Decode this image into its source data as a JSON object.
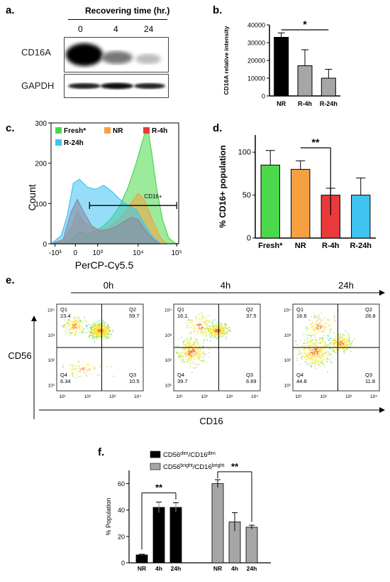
{
  "panel_labels": {
    "a": "a.",
    "b": "b.",
    "c": "c.",
    "d": "d.",
    "e": "e.",
    "f": "f."
  },
  "western_blot": {
    "header": "Recovering time (hr.)",
    "lanes": [
      "0",
      "4",
      "24"
    ],
    "rows": [
      "CD16A",
      "GAPDH"
    ],
    "band_intensity": {
      "CD16A": [
        1.0,
        0.5,
        0.3
      ],
      "GAPDH": [
        1.0,
        1.0,
        1.0
      ]
    }
  },
  "chart_data": [
    {
      "id": "b",
      "type": "bar",
      "categories": [
        "NR",
        "R-4h",
        "R-24h"
      ],
      "values": [
        33000,
        17000,
        10000
      ],
      "errors": [
        2500,
        9000,
        5000
      ],
      "colors": [
        "#000000",
        "#a6a6a6",
        "#a6a6a6"
      ],
      "ylabel": "CD16A relative intensity",
      "ylim": [
        0,
        40000
      ],
      "yticks": [
        "0",
        "10000",
        "20000",
        "30000",
        "40000"
      ],
      "significance": [
        {
          "from": 0,
          "to": 2,
          "label": "*"
        }
      ]
    },
    {
      "id": "c",
      "type": "area",
      "xlabel": "PerCP-Cy5.5",
      "ylabel": "Count",
      "ylim": [
        0,
        300
      ],
      "yticks": [
        "0",
        "100",
        "200",
        "300"
      ],
      "xticks": [
        "-10³",
        "0",
        "10³",
        "10⁴",
        "10⁵"
      ],
      "gate_label": "CD16+",
      "series": [
        {
          "name": "Fresh*",
          "color": "#4bd94b",
          "curve": [
            [
              0,
              0
            ],
            [
              0.6,
              2
            ],
            [
              1,
              10
            ],
            [
              1.4,
              30
            ],
            [
              1.8,
              22
            ],
            [
              2.2,
              32
            ],
            [
              2.6,
              45
            ],
            [
              3,
              65
            ],
            [
              3.4,
              95
            ],
            [
              3.8,
              140
            ],
            [
              4.2,
              200
            ],
            [
              4.6,
              270
            ],
            [
              4.8,
              280
            ],
            [
              5,
              215
            ],
            [
              5.2,
              140
            ],
            [
              5.5,
              60
            ],
            [
              5.8,
              15
            ],
            [
              6.1,
              2
            ],
            [
              6.3,
              0
            ]
          ]
        },
        {
          "name": "NR",
          "color": "#f5a142",
          "curve": [
            [
              0,
              0
            ],
            [
              0.6,
              5
            ],
            [
              1,
              40
            ],
            [
              1.3,
              80
            ],
            [
              1.6,
              55
            ],
            [
              2,
              40
            ],
            [
              2.4,
              35
            ],
            [
              2.8,
              40
            ],
            [
              3.2,
              55
            ],
            [
              3.6,
              75
            ],
            [
              4,
              105
            ],
            [
              4.3,
              125
            ],
            [
              4.6,
              110
            ],
            [
              5,
              60
            ],
            [
              5.4,
              15
            ],
            [
              5.7,
              0
            ]
          ]
        },
        {
          "name": "R-4h",
          "color": "#e83a3a",
          "curve": [
            [
              0,
              0
            ],
            [
              0.6,
              10
            ],
            [
              1,
              80
            ],
            [
              1.3,
              110
            ],
            [
              1.6,
              80
            ],
            [
              2,
              45
            ],
            [
              2.4,
              32
            ],
            [
              2.8,
              35
            ],
            [
              3.2,
              42
            ],
            [
              3.6,
              55
            ],
            [
              4,
              65
            ],
            [
              4.3,
              60
            ],
            [
              4.7,
              30
            ],
            [
              5.1,
              8
            ],
            [
              5.4,
              0
            ]
          ]
        },
        {
          "name": "R-24h",
          "color": "#3fc3f0",
          "curve": [
            [
              0,
              0
            ],
            [
              0.5,
              20
            ],
            [
              0.8,
              70
            ],
            [
              1.1,
              150
            ],
            [
              1.4,
              160
            ],
            [
              1.8,
              140
            ],
            [
              2.2,
              135
            ],
            [
              2.6,
              145
            ],
            [
              3,
              130
            ],
            [
              3.4,
              110
            ],
            [
              3.8,
              95
            ],
            [
              4.2,
              85
            ],
            [
              4.6,
              50
            ],
            [
              5,
              18
            ],
            [
              5.4,
              0
            ]
          ]
        }
      ]
    },
    {
      "id": "d",
      "type": "bar",
      "categories": [
        "Fresh*",
        "NR",
        "R-4h",
        "R-24h"
      ],
      "values": [
        85,
        80,
        50,
        50
      ],
      "errors": [
        17,
        10,
        8,
        20
      ],
      "colors": [
        "#4bd94b",
        "#f5a142",
        "#e83a3a",
        "#3fc3f0"
      ],
      "ylabel": "% CD16+ population",
      "ylim": [
        0,
        120
      ],
      "yticks": [
        "0",
        "50",
        "100"
      ],
      "significance": [
        {
          "from": 1,
          "to": 2,
          "label": "**"
        }
      ]
    },
    {
      "id": "e",
      "type": "scatter",
      "xlabel": "CD16",
      "ylabel": "CD56",
      "timeline": [
        "0h",
        "4h",
        "24h"
      ],
      "plots": [
        {
          "title": "0h",
          "quadrants": {
            "Q1": "23.4",
            "Q2": "59.7",
            "Q3": "10.5",
            "Q4": "6.34"
          }
        },
        {
          "title": "4h",
          "quadrants": {
            "Q1": "16.1",
            "Q2": "37.5",
            "Q3": "6.69",
            "Q4": "39.7"
          }
        },
        {
          "title": "24h",
          "quadrants": {
            "Q1": "16.6",
            "Q2": "26.8",
            "Q3": "11.8",
            "Q4": "44.8"
          }
        }
      ],
      "xticks": [
        "10¹",
        "10²",
        "10³",
        "10⁴"
      ],
      "yticks": [
        "10⁴",
        "10³",
        "10²",
        "10¹"
      ]
    },
    {
      "id": "f",
      "type": "bar",
      "ylabel": "% Population",
      "ylim": [
        0,
        70
      ],
      "yticks": [
        "0",
        "20",
        "40",
        "60"
      ],
      "legend": [
        {
          "name": "CD56dim/CD16dim",
          "a": "CD56",
          "a_sup": "dim",
          "b": "/CD16",
          "b_sup": "dim",
          "color": "#000000"
        },
        {
          "name": "CD56bright/CD16bright",
          "a": "CD56",
          "a_sup": "bright",
          "b": "/CD16",
          "b_sup": "bright",
          "color": "#a6a6a6"
        }
      ],
      "groups": [
        {
          "categories": [
            "NR",
            "4h",
            "24h"
          ],
          "values": [
            6,
            42,
            42
          ],
          "errors": [
            0.5,
            4,
            3.5
          ],
          "color": "#000000"
        },
        {
          "categories": [
            "NR",
            "4h",
            "24h"
          ],
          "values": [
            60,
            31,
            27
          ],
          "errors": [
            3,
            7,
            1.5
          ],
          "color": "#a6a6a6"
        }
      ],
      "significance": [
        {
          "group": 0,
          "from": 0,
          "to": 2,
          "label": "**"
        },
        {
          "group": 1,
          "from": 0,
          "to": 2,
          "label": "**"
        }
      ]
    }
  ]
}
